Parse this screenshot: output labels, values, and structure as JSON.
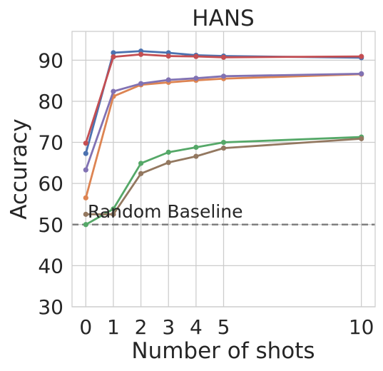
{
  "chart_data": {
    "type": "line",
    "title": "HANS",
    "xlabel": "Number of shots",
    "ylabel": "Accuracy",
    "xlim": [
      -0.5,
      10.5
    ],
    "ylim": [
      30,
      97
    ],
    "xticks": [
      0,
      1,
      2,
      3,
      4,
      5,
      10
    ],
    "yticks": [
      30,
      40,
      50,
      60,
      70,
      80,
      90
    ],
    "grid": true,
    "x": [
      0,
      1,
      2,
      3,
      4,
      5,
      10
    ],
    "series": [
      {
        "color": "#4c72b0",
        "values": [
          67.3,
          91.8,
          92.2,
          91.8,
          91.2,
          91.0,
          90.6
        ]
      },
      {
        "color": "#dd8452",
        "values": [
          56.5,
          81.2,
          84.0,
          84.6,
          85.1,
          85.5,
          86.6
        ]
      },
      {
        "color": "#55a868",
        "values": [
          50.0,
          53.8,
          64.9,
          67.6,
          68.8,
          70.0,
          71.3
        ]
      },
      {
        "color": "#c44e52",
        "values": [
          69.8,
          90.8,
          91.4,
          91.0,
          90.9,
          90.7,
          90.9
        ]
      },
      {
        "color": "#8172b3",
        "values": [
          63.3,
          82.4,
          84.3,
          85.2,
          85.6,
          86.1,
          86.7
        ]
      },
      {
        "color": "#937860",
        "values": [
          52.5,
          52.5,
          62.4,
          65.1,
          66.6,
          68.6,
          70.9
        ]
      }
    ],
    "baseline": {
      "label": "Random Baseline",
      "value": 50,
      "color": "#808080"
    }
  }
}
